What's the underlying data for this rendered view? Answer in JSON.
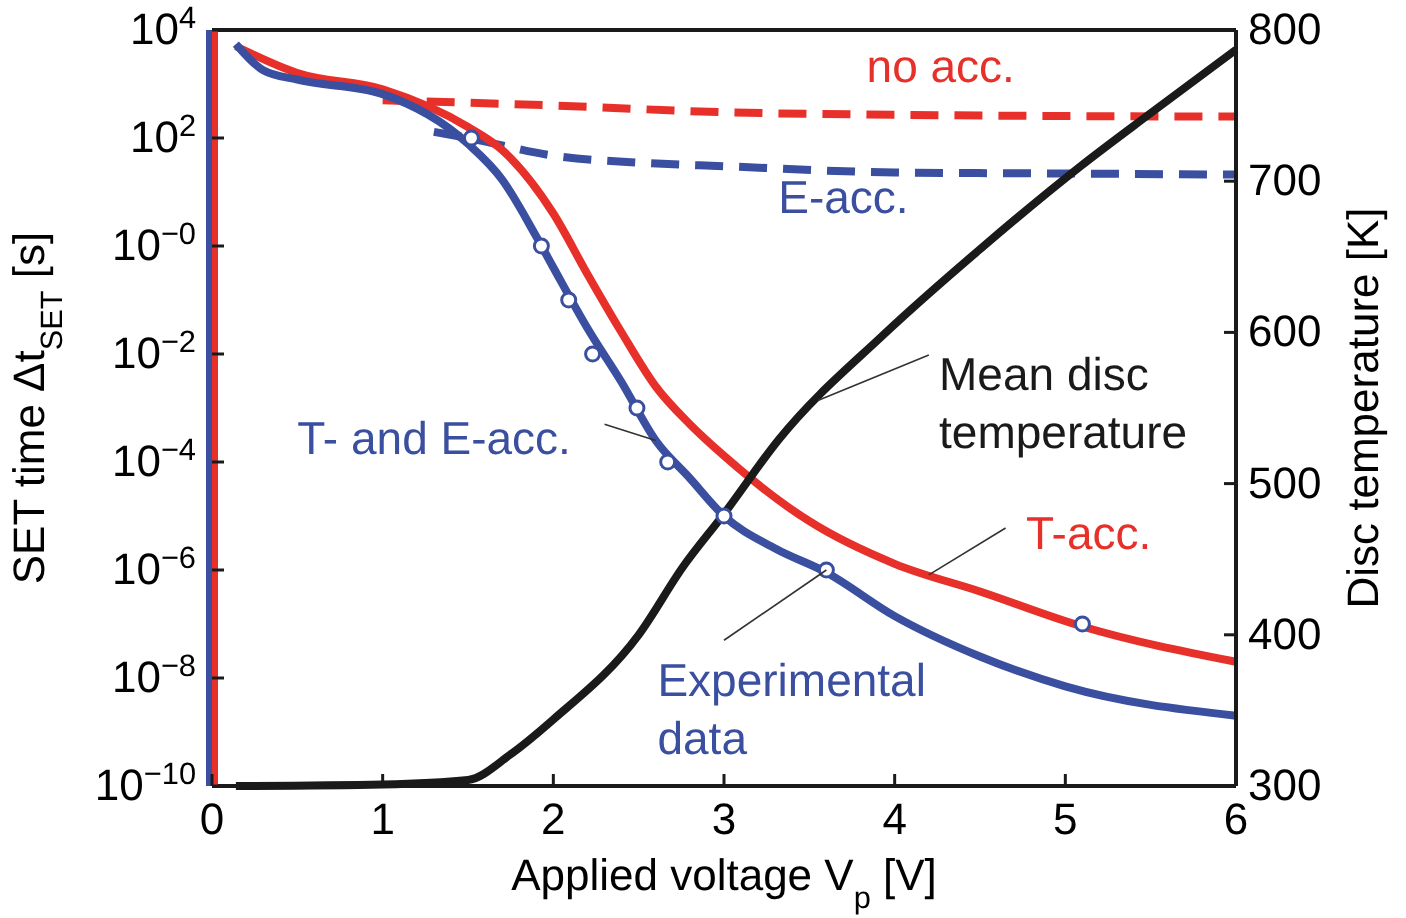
{
  "chart_data": {
    "type": "line",
    "xlabel": "Applied voltage V$_{p}$ [V]",
    "ylabel": "SET time Δt$_{SET}$ [s]",
    "y2label": "Disc temperature [K]",
    "log": "y",
    "xlim": [
      0,
      6
    ],
    "xticks": [
      0,
      1,
      2,
      3,
      4,
      5,
      6
    ],
    "ylim": [
      1e-10,
      10000
    ],
    "yticks": [
      {
        "value": 10000,
        "label": "10$^{4}$"
      },
      {
        "value": 100,
        "label": "10$^{2}$"
      },
      {
        "value": 1,
        "label": "10$^{−0}$"
      },
      {
        "value": 0.01,
        "label": "10$^{−2}$"
      },
      {
        "value": 0.0001,
        "label": "10$^{−4}$"
      },
      {
        "value": 1e-06,
        "label": "10$^{−6}$"
      },
      {
        "value": 1e-08,
        "label": "10$^{−8}$"
      },
      {
        "value": 1e-10,
        "label": "10$^{−10}$"
      }
    ],
    "y2lim": [
      300,
      800
    ],
    "y2ticks": [
      300,
      400,
      500,
      600,
      700,
      800
    ],
    "grid": false,
    "legend": false,
    "series": [
      {
        "name": "no acc.",
        "color": "#e8302a",
        "line_style": "dashed",
        "x": [
          1.0,
          2.0,
          3.0,
          4.0,
          5.0,
          6.0
        ],
        "values": [
          500,
          400,
          300,
          270,
          255,
          250
        ]
      },
      {
        "name": "E-acc.",
        "color": "#3a4fa0",
        "line_style": "dashed",
        "x": [
          1.3,
          1.5,
          2.0,
          2.5,
          3.0,
          4.0,
          5.0,
          6.0
        ],
        "values": [
          130,
          100,
          47,
          35,
          30,
          23,
          22,
          21
        ]
      },
      {
        "name": "T-acc.",
        "color": "#e8302a",
        "x": [
          0.14,
          0.5,
          1.0,
          1.5,
          1.7,
          2.0,
          2.2,
          2.4,
          2.6,
          2.8,
          3.0,
          3.5,
          4.0,
          4.5,
          5.1,
          6.0
        ],
        "values": [
          5000,
          1600,
          800,
          160,
          60,
          4,
          0.3,
          0.025,
          0.0025,
          0.0005,
          0.00013,
          8e-06,
          1.3e-06,
          4e-07,
          9e-08,
          2e-08
        ]
      },
      {
        "name": "T- and E-acc.",
        "color": "#3a4fa0",
        "x": [
          0.14,
          0.3,
          0.5,
          1.0,
          1.5,
          1.7,
          1.9,
          2.0,
          2.2,
          2.4,
          2.6,
          2.8,
          3.0,
          3.3,
          3.6,
          4.0,
          4.5,
          5.0,
          6.0
        ],
        "values": [
          5500,
          1800,
          1200,
          650,
          78,
          17,
          1.5,
          0.4,
          0.03,
          0.003,
          0.00025,
          5e-05,
          1e-05,
          2.5e-06,
          9e-07,
          1.4e-07,
          2.5e-08,
          7e-09,
          2e-09
        ]
      },
      {
        "name": "Experimental data",
        "type": "scatter",
        "marker": "circle",
        "color": "#3a4fa0",
        "x": [
          1.52,
          1.93,
          2.09,
          2.23,
          2.49,
          2.67,
          3.0,
          3.6,
          5.1
        ],
        "values": [
          100,
          1,
          0.1,
          0.01,
          0.001,
          0.0001,
          1e-05,
          1e-06,
          1e-07
        ]
      },
      {
        "name": "Mean disc temperature",
        "color": "#1a1a1a",
        "axis": "y2",
        "x": [
          0.14,
          1.0,
          1.5,
          1.75,
          2.0,
          2.5,
          2.76,
          3.0,
          3.32,
          3.94,
          4.5,
          5.09,
          5.5,
          6.0
        ],
        "values": [
          300,
          301,
          304,
          321,
          344,
          400,
          445,
          480,
          529,
          599,
          655,
          710,
          745,
          787
        ]
      }
    ]
  }
}
